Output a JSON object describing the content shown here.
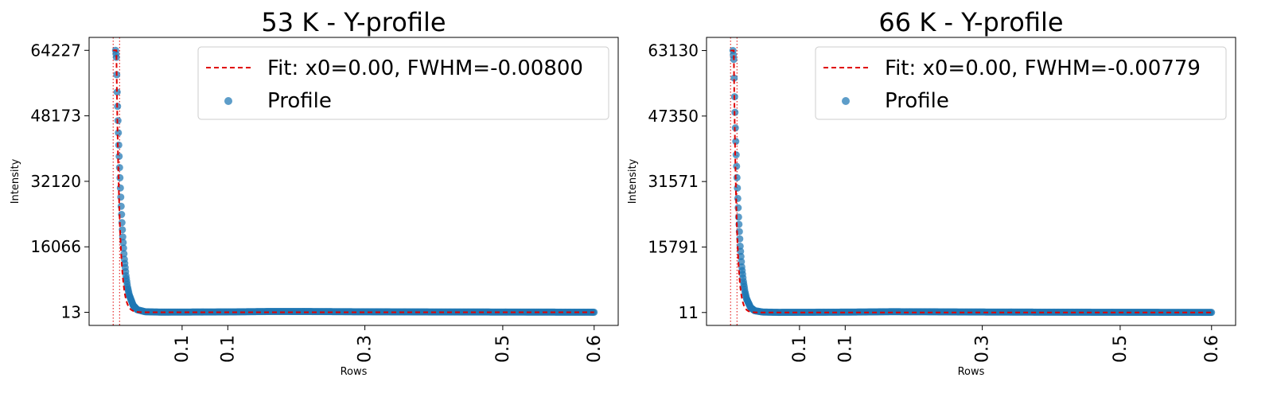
{
  "chart_data": [
    {
      "type": "scatter",
      "title": "53 K - Y-profile",
      "xlabel": "Rows",
      "ylabel": "Intensity",
      "xlim": [
        -0.03,
        0.63
      ],
      "ylim": [
        -3200,
        67400
      ],
      "x_ticks": [
        {
          "value": 0.086,
          "label": "0.1"
        },
        {
          "value": 0.143,
          "label": "0.1"
        },
        {
          "value": 0.314,
          "label": "0.3"
        },
        {
          "value": 0.486,
          "label": "0.5"
        },
        {
          "value": 0.6,
          "label": "0.6"
        }
      ],
      "y_ticks": [
        13,
        16066,
        32120,
        48173,
        64227
      ],
      "vlines": [
        0.0,
        0.008
      ],
      "fit": {
        "x0": 0.004,
        "peak": 64227,
        "baseline": 13,
        "decay": 0.004
      },
      "legend": {
        "position": "upper right",
        "fit_label": "Fit: x0=0.00, FWHM=-0.00800",
        "profile_label": "Profile"
      },
      "series": [
        {
          "name": "Profile",
          "x": [
            0.003,
            0.004,
            0.005,
            0.006,
            0.007,
            0.008,
            0.009,
            0.01,
            0.011,
            0.012,
            0.014,
            0.016,
            0.018,
            0.02,
            0.025,
            0.03,
            0.04,
            0.06,
            0.1,
            0.15,
            0.2,
            0.25,
            0.3,
            0.4,
            0.5,
            0.6
          ],
          "y": [
            64227,
            62500,
            54000,
            47000,
            41000,
            35500,
            30500,
            26000,
            22000,
            18500,
            13000,
            9000,
            6200,
            4300,
            1700,
            650,
            150,
            60,
            80,
            120,
            220,
            200,
            150,
            100,
            70,
            40
          ]
        },
        {
          "name": "Fit: x0=0.00, FWHM=-0.00800"
        }
      ]
    },
    {
      "type": "scatter",
      "title": "66 K - Y-profile",
      "xlabel": "Rows",
      "ylabel": "Intensity",
      "xlim": [
        -0.03,
        0.63
      ],
      "ylim": [
        -3100,
        66300
      ],
      "x_ticks": [
        {
          "value": 0.086,
          "label": "0.1"
        },
        {
          "value": 0.143,
          "label": "0.1"
        },
        {
          "value": 0.314,
          "label": "0.3"
        },
        {
          "value": 0.486,
          "label": "0.5"
        },
        {
          "value": 0.6,
          "label": "0.6"
        }
      ],
      "y_ticks": [
        11,
        15791,
        31571,
        47350,
        63130
      ],
      "vlines": [
        0.0,
        0.008
      ],
      "fit": {
        "x0": 0.004,
        "peak": 63130,
        "baseline": 11,
        "decay": 0.0035
      },
      "legend": {
        "position": "upper right",
        "fit_label": "Fit: x0=0.00, FWHM=-0.00779",
        "profile_label": "Profile"
      },
      "series": [
        {
          "name": "Profile",
          "x": [
            0.003,
            0.004,
            0.005,
            0.006,
            0.007,
            0.008,
            0.009,
            0.01,
            0.011,
            0.012,
            0.014,
            0.016,
            0.018,
            0.02,
            0.025,
            0.03,
            0.04,
            0.06,
            0.1,
            0.15,
            0.2,
            0.25,
            0.3,
            0.4,
            0.5,
            0.6
          ],
          "y": [
            63130,
            61000,
            52000,
            44500,
            38000,
            32500,
            27500,
            23000,
            19500,
            16000,
            11000,
            7500,
            5000,
            3300,
            1200,
            450,
            120,
            50,
            70,
            110,
            200,
            180,
            130,
            90,
            60,
            35
          ]
        },
        {
          "name": "Fit: x0=0.00, FWHM=-0.00779"
        }
      ]
    }
  ]
}
